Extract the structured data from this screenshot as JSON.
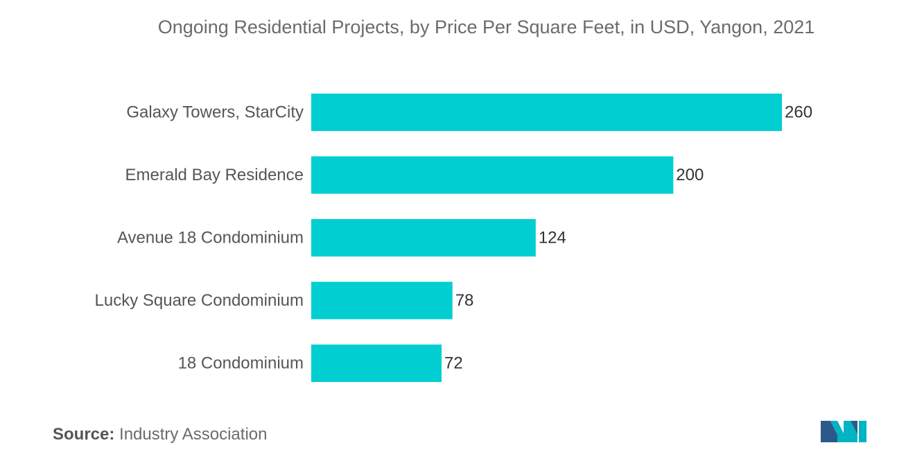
{
  "chart_data": {
    "type": "bar",
    "orientation": "horizontal",
    "title": "Ongoing Residential Projects, by Price Per Square Feet, in USD, Yangon, 2021",
    "categories": [
      "Galaxy Towers, StarCity",
      "Emerald Bay Residence",
      "Avenue 18 Condominium",
      "Lucky Square Condominium",
      "18 Condominium"
    ],
    "values": [
      260,
      200,
      124,
      78,
      72
    ],
    "data_labels": [
      "260",
      "200",
      "124",
      "78",
      "72"
    ],
    "xlim": [
      0,
      260
    ],
    "grid": false,
    "legend": "none",
    "bar_color": "#00ced1"
  },
  "source": {
    "label": "Source:",
    "text": "Industry Association"
  },
  "logo": {
    "icon": "mordor-intelligence-logo-icon",
    "colors": [
      "#2b5a8a",
      "#00b4c4"
    ]
  }
}
